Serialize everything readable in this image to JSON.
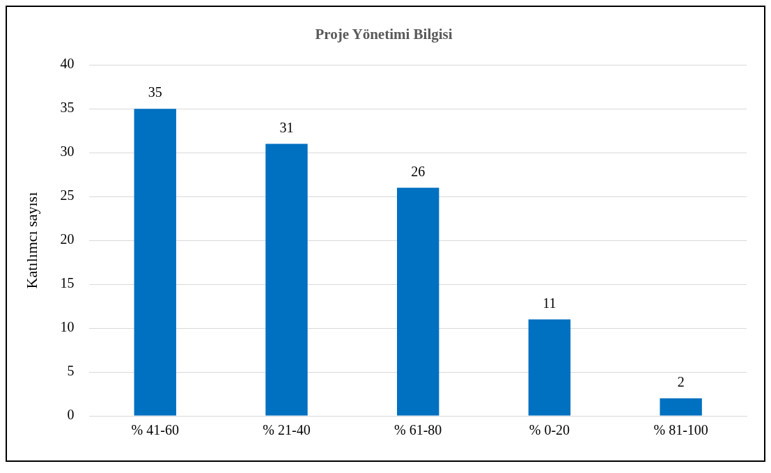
{
  "chart_data": {
    "type": "bar",
    "title": "Proje Yönetimi Bilgisi",
    "ylabel": "Katılımcı sayısı",
    "categories": [
      "% 41-60",
      "% 21-40",
      "% 61-80",
      "% 0-20",
      "% 81-100"
    ],
    "values": [
      35,
      31,
      26,
      11,
      2
    ],
    "color": "#0070c0",
    "ylim": [
      0,
      40
    ],
    "yticks": [
      0,
      5,
      10,
      15,
      20,
      25,
      30,
      35,
      40
    ],
    "grid": "y",
    "data_labels": true,
    "legend": false
  }
}
